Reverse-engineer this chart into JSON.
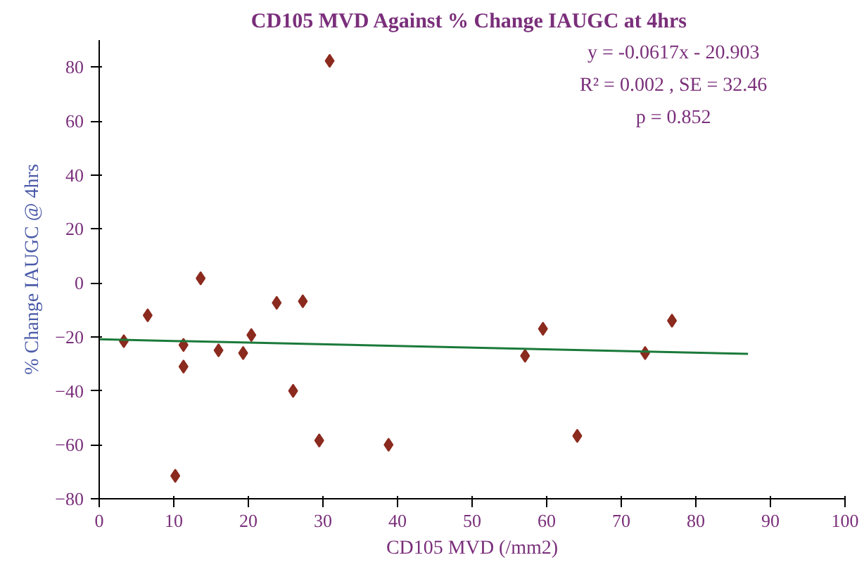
{
  "chart_data": {
    "type": "scatter",
    "title": "CD105 MVD Against %  Change IAUGC at 4hrs",
    "xlabel": "CD105 MVD (/mm2)",
    "ylabel": "% Change IAUGC @ 4hrs",
    "annotations": [
      "y = -0.0617x - 20.903",
      "R² = 0.002 , SE = 32.46",
      "p = 0.852"
    ],
    "series": [
      {
        "marker": "diamond",
        "color": "#8b2a1e",
        "x": [
          3.3,
          6.5,
          11.3,
          11.3,
          10.2,
          13.6,
          16,
          19.3,
          20.4,
          23.8,
          27.3,
          26,
          29.5,
          30.9,
          38.8,
          57.1,
          59.5,
          64.1,
          73.2,
          76.8
        ],
        "values": [
          -21.6,
          -12,
          -23,
          -31,
          -71.5,
          1.7,
          -25,
          -26,
          -19.3,
          -7.4,
          -6.8,
          -40,
          -58.4,
          82.3,
          -60,
          -27,
          -17,
          -56.7,
          -26,
          -14
        ]
      },
      {
        "type": "line",
        "color": "#1a7a3a",
        "x": [
          0,
          87
        ],
        "values": [
          -20.9,
          -26.3
        ]
      }
    ],
    "grid": false,
    "xlim": [
      0,
      100
    ],
    "xticks": [
      0,
      10,
      20,
      30,
      40,
      50,
      60,
      70,
      80,
      90,
      100
    ],
    "ylim": [
      -80,
      90
    ],
    "yticks": [
      -80,
      -60,
      -40,
      -20,
      0,
      20,
      40,
      60,
      80
    ]
  }
}
